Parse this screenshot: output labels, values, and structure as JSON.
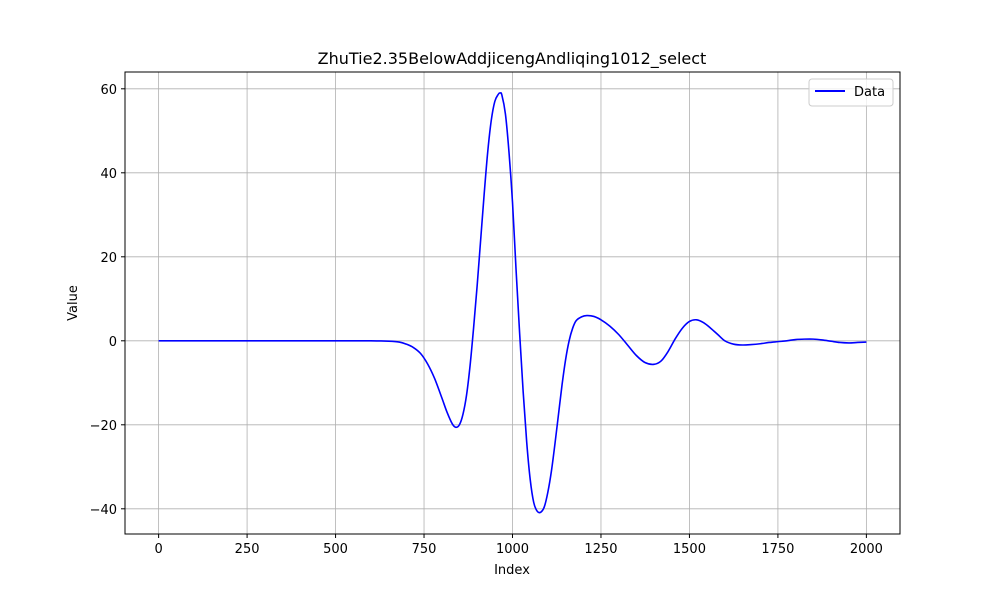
{
  "chart_data": {
    "type": "line",
    "title": "ZhuTie2.35BelowAddjicengAndliqing1012_select",
    "xlabel": "Index",
    "ylabel": "Value",
    "xlim": [
      -95,
      2095
    ],
    "ylim": [
      -46,
      64
    ],
    "x_ticks": [
      0,
      250,
      500,
      750,
      1000,
      1250,
      1500,
      1750,
      2000
    ],
    "y_ticks": [
      -40,
      -20,
      0,
      20,
      40,
      60
    ],
    "grid": true,
    "legend_position": "top-right",
    "series": [
      {
        "name": "Data",
        "color": "#0000ff",
        "points": [
          [
            0,
            0
          ],
          [
            100,
            0
          ],
          [
            200,
            0
          ],
          [
            300,
            0
          ],
          [
            400,
            0
          ],
          [
            500,
            0
          ],
          [
            600,
            0
          ],
          [
            650,
            -0.1
          ],
          [
            680,
            -0.3
          ],
          [
            700,
            -0.8
          ],
          [
            720,
            -1.6
          ],
          [
            740,
            -3
          ],
          [
            760,
            -5.5
          ],
          [
            780,
            -9
          ],
          [
            800,
            -13.5
          ],
          [
            815,
            -17
          ],
          [
            830,
            -19.8
          ],
          [
            840,
            -20.6
          ],
          [
            850,
            -20.0
          ],
          [
            860,
            -17.5
          ],
          [
            870,
            -13
          ],
          [
            880,
            -6
          ],
          [
            890,
            3
          ],
          [
            900,
            13
          ],
          [
            910,
            24
          ],
          [
            920,
            35
          ],
          [
            930,
            45
          ],
          [
            940,
            52.5
          ],
          [
            950,
            57
          ],
          [
            960,
            58.7
          ],
          [
            965,
            59
          ],
          [
            970,
            58.5
          ],
          [
            980,
            54
          ],
          [
            990,
            45
          ],
          [
            1000,
            33
          ],
          [
            1010,
            17
          ],
          [
            1020,
            2
          ],
          [
            1030,
            -12
          ],
          [
            1040,
            -24
          ],
          [
            1050,
            -33
          ],
          [
            1060,
            -38.5
          ],
          [
            1070,
            -40.6
          ],
          [
            1080,
            -40.8
          ],
          [
            1090,
            -39.5
          ],
          [
            1100,
            -36
          ],
          [
            1110,
            -31
          ],
          [
            1120,
            -24.5
          ],
          [
            1130,
            -17.5
          ],
          [
            1140,
            -10.5
          ],
          [
            1150,
            -4.5
          ],
          [
            1160,
            0
          ],
          [
            1170,
            3
          ],
          [
            1180,
            4.8
          ],
          [
            1195,
            5.7
          ],
          [
            1210,
            6
          ],
          [
            1230,
            5.8
          ],
          [
            1250,
            5
          ],
          [
            1275,
            3.5
          ],
          [
            1300,
            1.5
          ],
          [
            1325,
            -1
          ],
          [
            1350,
            -3.5
          ],
          [
            1375,
            -5.2
          ],
          [
            1400,
            -5.6
          ],
          [
            1420,
            -4.8
          ],
          [
            1440,
            -2.5
          ],
          [
            1460,
            0.5
          ],
          [
            1480,
            3
          ],
          [
            1500,
            4.6
          ],
          [
            1520,
            5
          ],
          [
            1540,
            4.3
          ],
          [
            1560,
            3
          ],
          [
            1580,
            1.5
          ],
          [
            1600,
            0
          ],
          [
            1625,
            -0.8
          ],
          [
            1650,
            -1
          ],
          [
            1675,
            -0.9
          ],
          [
            1700,
            -0.7
          ],
          [
            1725,
            -0.4
          ],
          [
            1750,
            -0.2
          ],
          [
            1775,
            0
          ],
          [
            1800,
            0.3
          ],
          [
            1825,
            0.4
          ],
          [
            1850,
            0.4
          ],
          [
            1875,
            0.2
          ],
          [
            1900,
            -0.1
          ],
          [
            1925,
            -0.4
          ],
          [
            1950,
            -0.5
          ],
          [
            1975,
            -0.4
          ],
          [
            2000,
            -0.3
          ]
        ]
      }
    ]
  }
}
